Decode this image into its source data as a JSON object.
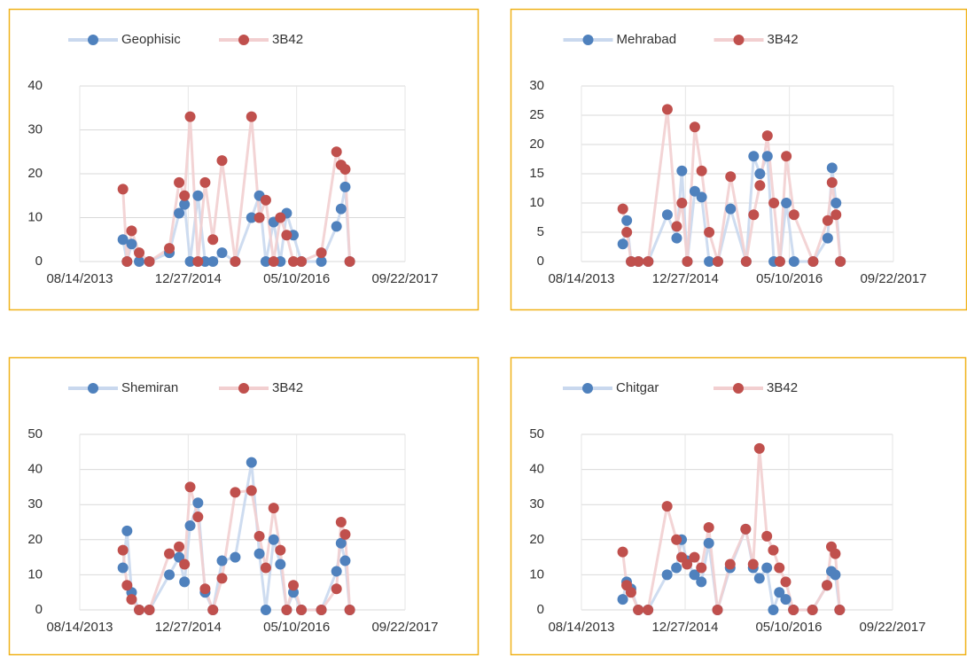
{
  "chart_data": [
    {
      "type": "line",
      "x": [
        "03/01/2014",
        "03/20/2014",
        "04/10/2014",
        "05/15/2014",
        "07/01/2014",
        "10/01/2014",
        "11/15/2014",
        "12/10/2014",
        "01/05/2015",
        "02/10/2015",
        "03/15/2015",
        "04/20/2015",
        "06/01/2015",
        "08/01/2015",
        "10/15/2015",
        "11/20/2015",
        "12/20/2015",
        "01/25/2016",
        "02/25/2016",
        "03/25/2016",
        "04/25/2016",
        "06/01/2016",
        "09/01/2016",
        "11/10/2016",
        "12/01/2016",
        "12/20/2016",
        "01/10/2017"
      ],
      "series": [
        {
          "name": "Geophisic",
          "color": "#4f81bd",
          "line_color": "#c9d8ee",
          "values": [
            5,
            0,
            4,
            0,
            0,
            2,
            11,
            13,
            0,
            15,
            0,
            0,
            2,
            0,
            10,
            15,
            0,
            9,
            0,
            11,
            6,
            0,
            0,
            8,
            12,
            17,
            0
          ]
        },
        {
          "name": "3B42",
          "color": "#c0504d",
          "line_color": "#f2cfd0",
          "values": [
            16.5,
            0,
            7,
            2,
            0,
            3,
            18,
            15,
            33,
            0,
            18,
            5,
            23,
            0,
            33,
            10,
            14,
            0,
            10,
            6,
            0,
            0,
            2,
            25,
            22,
            21,
            0
          ]
        }
      ],
      "xlim": [
        "08/14/2013",
        "09/22/2017"
      ],
      "xticks": [
        "08/14/2013",
        "12/27/2014",
        "05/10/2016",
        "09/22/2017"
      ],
      "ylim": [
        0,
        40
      ],
      "yticks": [
        0,
        10,
        20,
        30,
        40
      ],
      "grid": true,
      "legend": "top"
    },
    {
      "type": "line",
      "x": [
        "03/01/2014",
        "03/20/2014",
        "04/10/2014",
        "05/15/2014",
        "07/01/2014",
        "10/01/2014",
        "11/15/2014",
        "12/10/2014",
        "01/05/2015",
        "02/10/2015",
        "03/15/2015",
        "04/20/2015",
        "06/01/2015",
        "08/01/2015",
        "10/15/2015",
        "11/20/2015",
        "12/20/2015",
        "01/25/2016",
        "02/25/2016",
        "03/25/2016",
        "04/25/2016",
        "06/01/2016",
        "09/01/2016",
        "11/10/2016",
        "12/01/2016",
        "12/20/2016",
        "01/10/2017"
      ],
      "series": [
        {
          "name": "Mehrabad",
          "color": "#4f81bd",
          "line_color": "#c9d8ee",
          "values": [
            3,
            7,
            0,
            0,
            0,
            8,
            4,
            15.5,
            0,
            12,
            11,
            0,
            0,
            9,
            0,
            18,
            15,
            18,
            0,
            0,
            10,
            0,
            0,
            4,
            16,
            10,
            0
          ]
        },
        {
          "name": "3B42",
          "color": "#c0504d",
          "line_color": "#f2cfd0",
          "values": [
            9,
            5,
            0,
            0,
            0,
            26,
            6,
            10,
            0,
            23,
            15.5,
            5,
            0,
            14.5,
            0,
            8,
            13,
            21.5,
            10,
            0,
            18,
            8,
            0,
            7,
            13.5,
            8,
            0
          ]
        }
      ],
      "xlim": [
        "08/14/2013",
        "09/22/2017"
      ],
      "xticks": [
        "08/14/2013",
        "12/27/2014",
        "05/10/2016",
        "09/22/2017"
      ],
      "ylim": [
        0,
        30
      ],
      "yticks": [
        0,
        5,
        10,
        15,
        20,
        25,
        30
      ],
      "grid": true,
      "legend": "top"
    },
    {
      "type": "line",
      "x": [
        "03/01/2014",
        "03/20/2014",
        "04/10/2014",
        "05/15/2014",
        "07/01/2014",
        "10/01/2014",
        "11/15/2014",
        "12/10/2014",
        "01/05/2015",
        "02/10/2015",
        "03/15/2015",
        "04/20/2015",
        "06/01/2015",
        "08/01/2015",
        "10/15/2015",
        "11/20/2015",
        "12/20/2015",
        "01/25/2016",
        "02/25/2016",
        "03/25/2016",
        "04/25/2016",
        "06/01/2016",
        "09/01/2016",
        "11/10/2016",
        "12/01/2016",
        "12/20/2016",
        "01/10/2017"
      ],
      "series": [
        {
          "name": "Shemiran",
          "color": "#4f81bd",
          "line_color": "#c9d8ee",
          "values": [
            12,
            22.5,
            5,
            0,
            0,
            10,
            15,
            8,
            24,
            30.5,
            5,
            0,
            14,
            15,
            42,
            16,
            0,
            20,
            13,
            0,
            5,
            0,
            0,
            11,
            19,
            14,
            0
          ]
        },
        {
          "name": "3B42",
          "color": "#c0504d",
          "line_color": "#f2cfd0",
          "values": [
            17,
            7,
            3,
            0,
            0,
            16,
            18,
            13,
            35,
            26.5,
            6,
            0,
            9,
            33.5,
            34,
            21,
            12,
            29,
            17,
            0,
            7,
            0,
            0,
            6,
            25,
            21.5,
            0
          ]
        }
      ],
      "xlim": [
        "08/14/2013",
        "09/22/2017"
      ],
      "xticks": [
        "08/14/2013",
        "12/27/2014",
        "05/10/2016",
        "09/22/2017"
      ],
      "ylim": [
        0,
        50
      ],
      "yticks": [
        0,
        10,
        20,
        30,
        40,
        50
      ],
      "grid": true,
      "legend": "top"
    },
    {
      "type": "line",
      "x": [
        "03/01/2014",
        "03/20/2014",
        "04/10/2014",
        "05/15/2014",
        "07/01/2014",
        "10/01/2014",
        "11/15/2014",
        "12/10/2014",
        "01/05/2015",
        "02/10/2015",
        "03/15/2015",
        "04/20/2015",
        "06/01/2015",
        "08/01/2015",
        "10/15/2015",
        "11/20/2015",
        "12/20/2015",
        "01/25/2016",
        "02/25/2016",
        "03/25/2016",
        "04/25/2016",
        "06/01/2016",
        "09/01/2016",
        "11/10/2016",
        "12/01/2016",
        "12/20/2016",
        "01/10/2017"
      ],
      "series": [
        {
          "name": "Chitgar",
          "color": "#4f81bd",
          "line_color": "#c9d8ee",
          "values": [
            3,
            8,
            6,
            0,
            0,
            10,
            12,
            20,
            14,
            10,
            8,
            19,
            0,
            12,
            23,
            12,
            9,
            12,
            0,
            5,
            3,
            0,
            0,
            7,
            11,
            10,
            0
          ]
        },
        {
          "name": "3B42",
          "color": "#c0504d",
          "line_color": "#f2cfd0",
          "values": [
            16.5,
            7,
            5,
            0,
            0,
            29.5,
            20,
            15,
            13,
            15,
            12,
            23.5,
            0,
            13,
            23,
            13,
            46,
            21,
            17,
            12,
            8,
            0,
            0,
            7,
            18,
            16,
            0
          ]
        }
      ],
      "xlim": [
        "08/14/2013",
        "09/22/2017"
      ],
      "xticks": [
        "08/14/2013",
        "12/27/2014",
        "05/10/2016",
        "09/22/2017"
      ],
      "ylim": [
        0,
        50
      ],
      "yticks": [
        0,
        10,
        20,
        30,
        40,
        50
      ],
      "grid": true,
      "legend": "top"
    }
  ]
}
